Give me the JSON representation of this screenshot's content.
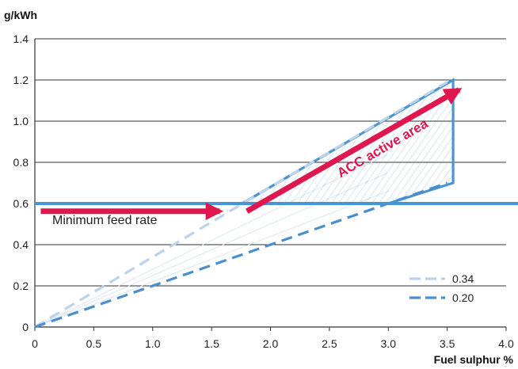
{
  "chart_data": {
    "type": "line",
    "ylabel": "g/kWh",
    "xlabel": "Fuel sulphur %",
    "xlim": [
      0,
      4.0
    ],
    "ylim": [
      0,
      1.4
    ],
    "x_ticks": [
      "0",
      "0.5",
      "1.0",
      "1.5",
      "2.0",
      "2.5",
      "3.0",
      "3.5",
      "4.0"
    ],
    "y_ticks": [
      "0",
      "0.2",
      "0.4",
      "0.6",
      "0.8",
      "1.0",
      "1.2",
      "1.4"
    ],
    "grid": "horizontal",
    "minimum_feed_rate": {
      "label": "Minimum feed rate",
      "value": 0.6,
      "color": "#4a94cf"
    },
    "series": [
      {
        "name": "0.34",
        "style": "dashed",
        "color": "#bcd3ea",
        "x": [
          0,
          3.5
        ],
        "y": [
          0,
          1.19
        ]
      },
      {
        "name": "0.20",
        "style": "dashed",
        "color": "#4a8fcc",
        "x": [
          0,
          3.5
        ],
        "y": [
          0,
          0.7
        ]
      }
    ],
    "acc_active_area": {
      "label": "ACC active area",
      "color": "#4a94cf",
      "x": [
        1.76,
        3.55,
        3.55,
        3.0
      ],
      "y": [
        0.6,
        1.2,
        0.7,
        0.6
      ]
    },
    "arrows": [
      {
        "x": [
          0.05,
          1.57
        ],
        "y": [
          0.67,
          0.67
        ],
        "color": "#e0174f"
      },
      {
        "x": [
          1.8,
          3.6
        ],
        "y": [
          0.67,
          1.26
        ],
        "color": "#e0174f"
      }
    ],
    "legend_position": "bottom-right"
  }
}
